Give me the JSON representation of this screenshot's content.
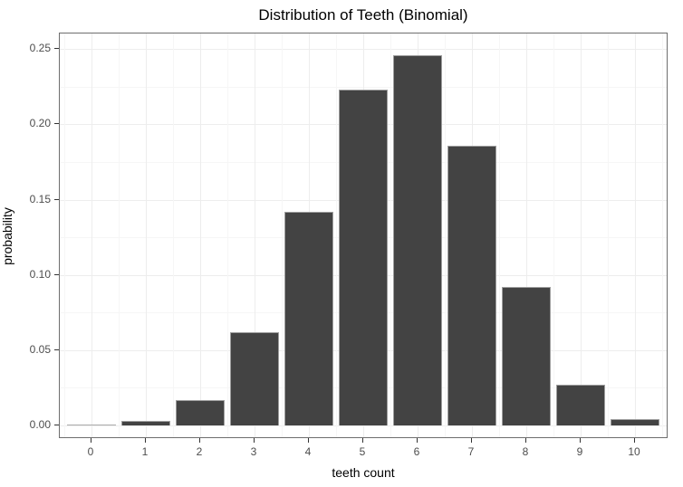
{
  "chart_data": {
    "type": "bar",
    "title": "Distribution of Teeth (Binomial)",
    "xlabel": "teeth count",
    "ylabel": "probability",
    "categories": [
      "0",
      "1",
      "2",
      "3",
      "4",
      "5",
      "6",
      "7",
      "8",
      "9",
      "10"
    ],
    "values": [
      0.0002,
      0.003,
      0.017,
      0.062,
      0.142,
      0.223,
      0.246,
      0.186,
      0.092,
      0.027,
      0.004
    ],
    "x_tick_labels": [
      "0",
      "1",
      "2",
      "3",
      "4",
      "5",
      "6",
      "7",
      "8",
      "9",
      "10"
    ],
    "y_tick_labels": [
      "0.00",
      "0.05",
      "0.10",
      "0.15",
      "0.20",
      "0.25"
    ],
    "y_tick_values": [
      0.0,
      0.05,
      0.1,
      0.15,
      0.2,
      0.25
    ],
    "ylim": [
      -0.009,
      0.26
    ],
    "grid": "major and minor, horizontal and vertical",
    "legend_position": "none",
    "colors": {
      "bar_fill": "#434343",
      "bar_border": "#9e9e9e",
      "panel_background": "#ffffff",
      "panel_border": "#6e6e6e",
      "grid_major": "#ededed",
      "grid_minor": "#f6f6f6",
      "tick_mark": "#333333",
      "tick_label": "#4d4d4d",
      "title_text": "#000000"
    }
  }
}
